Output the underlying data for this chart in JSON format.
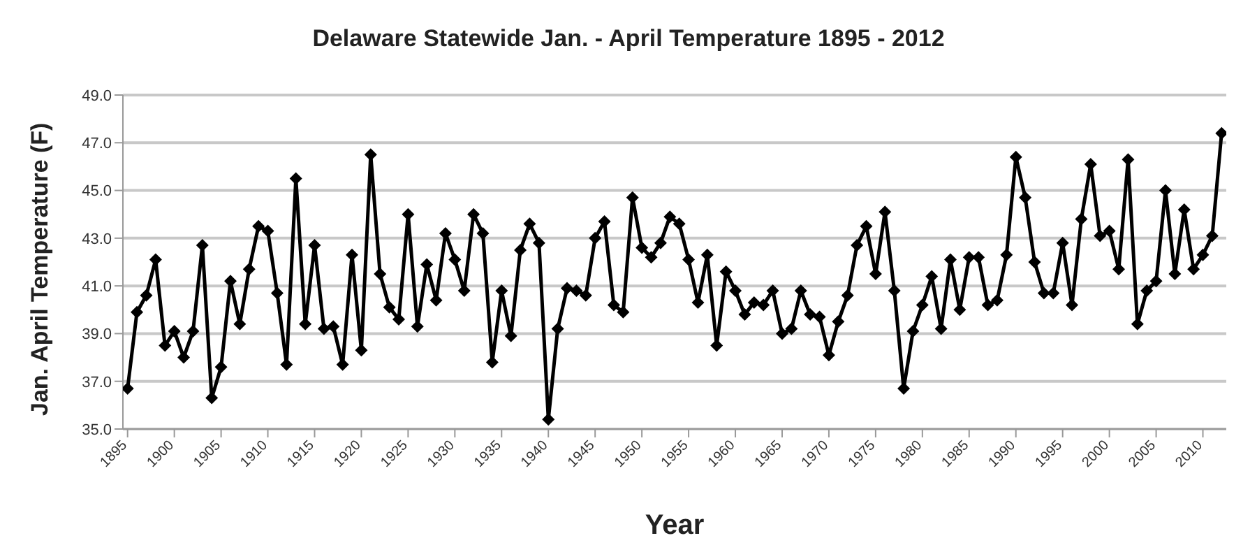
{
  "chart_data": {
    "type": "line",
    "title": "Delaware Statewide Jan. - April Temperature 1895 - 2012",
    "xlabel": "Year",
    "ylabel": "Jan. April  Temperature (F)",
    "x": [
      1895,
      1896,
      1897,
      1898,
      1899,
      1900,
      1901,
      1902,
      1903,
      1904,
      1905,
      1906,
      1907,
      1908,
      1909,
      1910,
      1911,
      1912,
      1913,
      1914,
      1915,
      1916,
      1917,
      1918,
      1919,
      1920,
      1921,
      1922,
      1923,
      1924,
      1925,
      1926,
      1927,
      1928,
      1929,
      1930,
      1931,
      1932,
      1933,
      1934,
      1935,
      1936,
      1937,
      1938,
      1939,
      1940,
      1941,
      1942,
      1943,
      1944,
      1945,
      1946,
      1947,
      1948,
      1949,
      1950,
      1951,
      1952,
      1953,
      1954,
      1955,
      1956,
      1957,
      1958,
      1959,
      1960,
      1961,
      1962,
      1963,
      1964,
      1965,
      1966,
      1967,
      1968,
      1969,
      1970,
      1971,
      1972,
      1973,
      1974,
      1975,
      1976,
      1977,
      1978,
      1979,
      1980,
      1981,
      1982,
      1983,
      1984,
      1985,
      1986,
      1987,
      1988,
      1989,
      1990,
      1991,
      1992,
      1993,
      1994,
      1995,
      1996,
      1997,
      1998,
      1999,
      2000,
      2001,
      2002,
      2003,
      2004,
      2005,
      2006,
      2007,
      2008,
      2009,
      2010,
      2011,
      2012
    ],
    "series": [
      {
        "color": "#000000",
        "values": [
          36.7,
          39.9,
          40.6,
          42.1,
          38.5,
          39.1,
          38.0,
          39.1,
          42.7,
          36.3,
          37.6,
          41.2,
          39.4,
          41.7,
          43.5,
          43.3,
          40.7,
          37.7,
          45.5,
          39.4,
          42.7,
          39.2,
          39.3,
          37.7,
          42.3,
          38.3,
          46.5,
          41.5,
          40.1,
          39.6,
          44.0,
          39.3,
          41.9,
          40.4,
          43.2,
          42.1,
          40.8,
          44.0,
          43.2,
          37.8,
          40.8,
          38.9,
          42.5,
          43.6,
          42.8,
          35.4,
          39.2,
          40.9,
          40.8,
          40.6,
          43.0,
          43.7,
          40.2,
          39.9,
          44.7,
          42.6,
          42.2,
          42.8,
          43.9,
          43.6,
          42.1,
          40.3,
          42.3,
          38.5,
          41.6,
          40.8,
          39.8,
          40.3,
          40.2,
          40.8,
          39.0,
          39.2,
          40.8,
          39.8,
          39.7,
          38.1,
          39.5,
          40.6,
          42.7,
          43.5,
          41.5,
          44.1,
          40.8,
          36.7,
          39.1,
          40.2,
          41.4,
          39.2,
          42.1,
          40.0,
          42.2,
          42.2,
          40.2,
          40.4,
          42.3,
          46.4,
          44.7,
          42.0,
          40.7,
          40.7,
          42.8,
          40.2,
          43.8,
          46.1,
          43.1,
          43.3,
          41.7,
          46.3,
          39.4,
          40.8,
          41.2,
          45.0,
          41.5,
          44.2,
          41.7,
          42.3,
          43.1,
          47.4
        ]
      }
    ],
    "xlim": [
      1894.5,
      2012.5
    ],
    "xticks": [
      1895,
      1900,
      1905,
      1910,
      1915,
      1920,
      1925,
      1930,
      1935,
      1940,
      1945,
      1950,
      1955,
      1960,
      1965,
      1970,
      1975,
      1980,
      1985,
      1990,
      1995,
      2000,
      2005,
      2010
    ],
    "ylim": [
      35,
      49
    ],
    "yticks": [
      {
        "value": 35,
        "label": "35.0"
      },
      {
        "value": 37,
        "label": "37.0"
      },
      {
        "value": 39,
        "label": "39.0"
      },
      {
        "value": 41,
        "label": "41.0"
      },
      {
        "value": 43,
        "label": "43.0"
      },
      {
        "value": 45,
        "label": "45.0"
      },
      {
        "value": 47,
        "label": "47.0"
      },
      {
        "value": 49,
        "label": "49.0"
      }
    ],
    "grid": "y",
    "legend": false,
    "marker": "diamond",
    "line_style": "solid"
  }
}
